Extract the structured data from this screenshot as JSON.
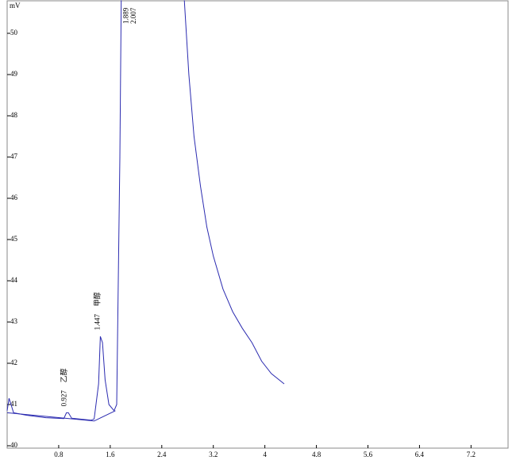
{
  "chart_data": {
    "type": "line",
    "y_label": "mV",
    "xlim": [
      0,
      7.75
    ],
    "ylim": [
      40,
      50.8
    ],
    "xticks": [
      0.8,
      1.6,
      2.4,
      3.2,
      4,
      4.8,
      5.6,
      6.4,
      7.2
    ],
    "yticks": [
      40,
      41,
      42,
      43,
      44,
      45,
      46,
      47,
      48,
      49,
      50
    ],
    "series": [
      {
        "color": "#2b2bb0",
        "x": [
          0.0,
          0.03,
          0.06,
          0.1,
          0.3,
          0.6,
          0.88,
          0.92,
          0.95,
          1.0,
          1.3,
          1.35,
          1.42,
          1.447,
          1.48,
          1.52,
          1.58,
          1.66,
          1.7,
          1.75,
          1.77,
          2.2,
          2.75,
          2.82,
          2.9,
          3.0,
          3.1,
          3.2,
          3.35,
          3.5,
          3.65,
          3.8,
          3.95,
          4.1,
          4.3
        ],
        "values": [
          40.85,
          41.15,
          41.0,
          40.8,
          40.74,
          40.68,
          40.66,
          40.8,
          40.8,
          40.67,
          40.62,
          40.65,
          41.5,
          42.65,
          42.5,
          41.6,
          41.0,
          40.85,
          41.0,
          47.0,
          50.8,
          null,
          50.8,
          49.0,
          47.5,
          46.3,
          45.3,
          44.6,
          43.8,
          43.25,
          42.85,
          42.5,
          42.05,
          41.75,
          41.5
        ]
      },
      {
        "color": "#2b2bb0",
        "x": [
          0.0,
          1.35,
          1.68
        ],
        "values": [
          40.8,
          40.6,
          40.85
        ]
      }
    ],
    "annotations": [
      {
        "x": 0.927,
        "y": 40.8,
        "label": "0.927",
        "name": "乙醇"
      },
      {
        "x": 1.447,
        "y": 42.65,
        "label": "1.447",
        "name": "甲醇"
      },
      {
        "x": 1.889,
        "y": 50.8,
        "label": "1.889"
      },
      {
        "x": 2.007,
        "y": 50.8,
        "label": "2.007"
      }
    ]
  }
}
